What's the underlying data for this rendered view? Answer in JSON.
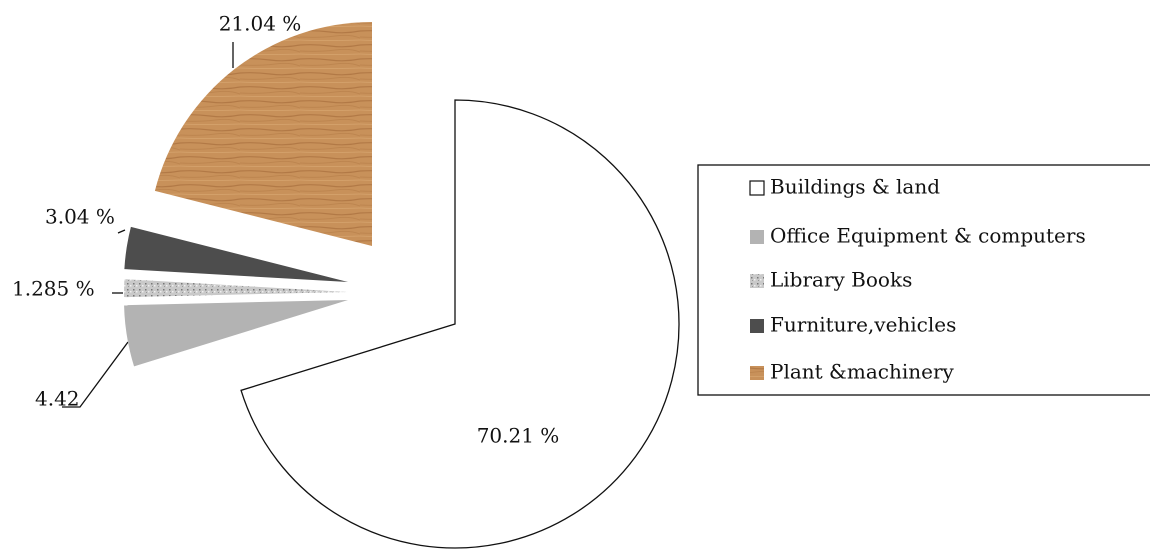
{
  "chart_data": {
    "type": "pie",
    "categories": [
      "Buildings & land",
      "Office Equipment & computers",
      "Library Books",
      "Furniture,vehicles",
      "Plant &machinery"
    ],
    "values": [
      70.21,
      4.42,
      1.285,
      3.04,
      21.04
    ],
    "value_labels": [
      "70.21 %",
      "4.42",
      "1.285 %",
      "3.04 %",
      "21.04 %"
    ],
    "colors": [
      "#ffffff",
      "#b3b3b3",
      "#c9c9c9",
      "#4d4d4d",
      "#c8915a"
    ]
  }
}
